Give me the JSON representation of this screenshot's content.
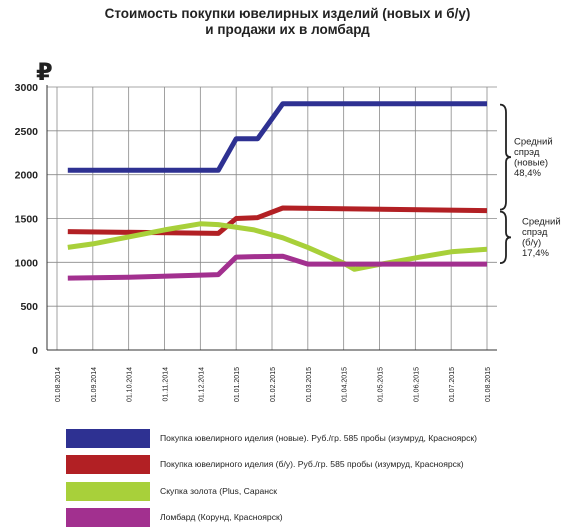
{
  "chart_data": {
    "type": "line",
    "title_lines": [
      "Стоимость покупки ювелирных изделий (новых и б/у)",
      "и продажи их в ломбард"
    ],
    "currency_symbol": "₽",
    "ylim": [
      0,
      3000
    ],
    "y_ticks": [
      0,
      500,
      1000,
      1500,
      2000,
      2500,
      3000
    ],
    "x_tick_labels": [
      "01.08.2014",
      "01.09.2014",
      "01.10.2014",
      "01.11.2014",
      "01.12.2014",
      "01.01.2015",
      "01.02.2015",
      "01.03.2015",
      "01.04.2015",
      "01.05.2015",
      "01.06.2015",
      "01.07.2015",
      "01.08.2015"
    ],
    "grid": true,
    "series": [
      {
        "name": "Покупка ювелирного иделия (новые). Руб./гр. 585 пробы (изумруд, Красноярск)",
        "color": "#2e3192",
        "points": [
          [
            0.3,
            2050
          ],
          [
            4.5,
            2050
          ],
          [
            5.0,
            2410
          ],
          [
            5.6,
            2410
          ],
          [
            6.3,
            2810
          ],
          [
            12.0,
            2810
          ]
        ]
      },
      {
        "name": "Покупка ювелирного иделия (б/у). Руб./гр. 585 пробы (изумруд, Красноярск)",
        "color": "#b22024",
        "points": [
          [
            0.3,
            1350
          ],
          [
            4.5,
            1330
          ],
          [
            5.0,
            1500
          ],
          [
            5.6,
            1510
          ],
          [
            6.3,
            1620
          ],
          [
            12.0,
            1590
          ]
        ]
      },
      {
        "name": "Скупка золота (Plus, Саранск",
        "color": "#a8d03a",
        "points": [
          [
            0.3,
            1170
          ],
          [
            1.0,
            1210
          ],
          [
            2.0,
            1290
          ],
          [
            3.0,
            1370
          ],
          [
            4.0,
            1440
          ],
          [
            4.5,
            1430
          ],
          [
            5.5,
            1370
          ],
          [
            6.3,
            1280
          ],
          [
            7.0,
            1170
          ],
          [
            7.5,
            1080
          ],
          [
            8.0,
            990
          ],
          [
            8.3,
            920
          ],
          [
            8.8,
            960
          ],
          [
            10.0,
            1050
          ],
          [
            11.0,
            1120
          ],
          [
            12.0,
            1150
          ]
        ]
      },
      {
        "name": "Ломбард (Корунд, Красноярск)",
        "color": "#a2308f",
        "points": [
          [
            0.3,
            820
          ],
          [
            2.0,
            830
          ],
          [
            4.5,
            860
          ],
          [
            5.0,
            1060
          ],
          [
            5.6,
            1065
          ],
          [
            6.3,
            1070
          ],
          [
            7.0,
            980
          ],
          [
            12.0,
            980
          ]
        ]
      }
    ],
    "annotations": [
      {
        "lines": [
          "Средний",
          "спрэд",
          "(новые)",
          "48,4%"
        ],
        "from": 1590,
        "to": 2810
      },
      {
        "lines": [
          "Средний",
          "спрэд",
          "(б/у)",
          "17,4%"
        ],
        "from": 980,
        "to": 1590
      }
    ]
  }
}
